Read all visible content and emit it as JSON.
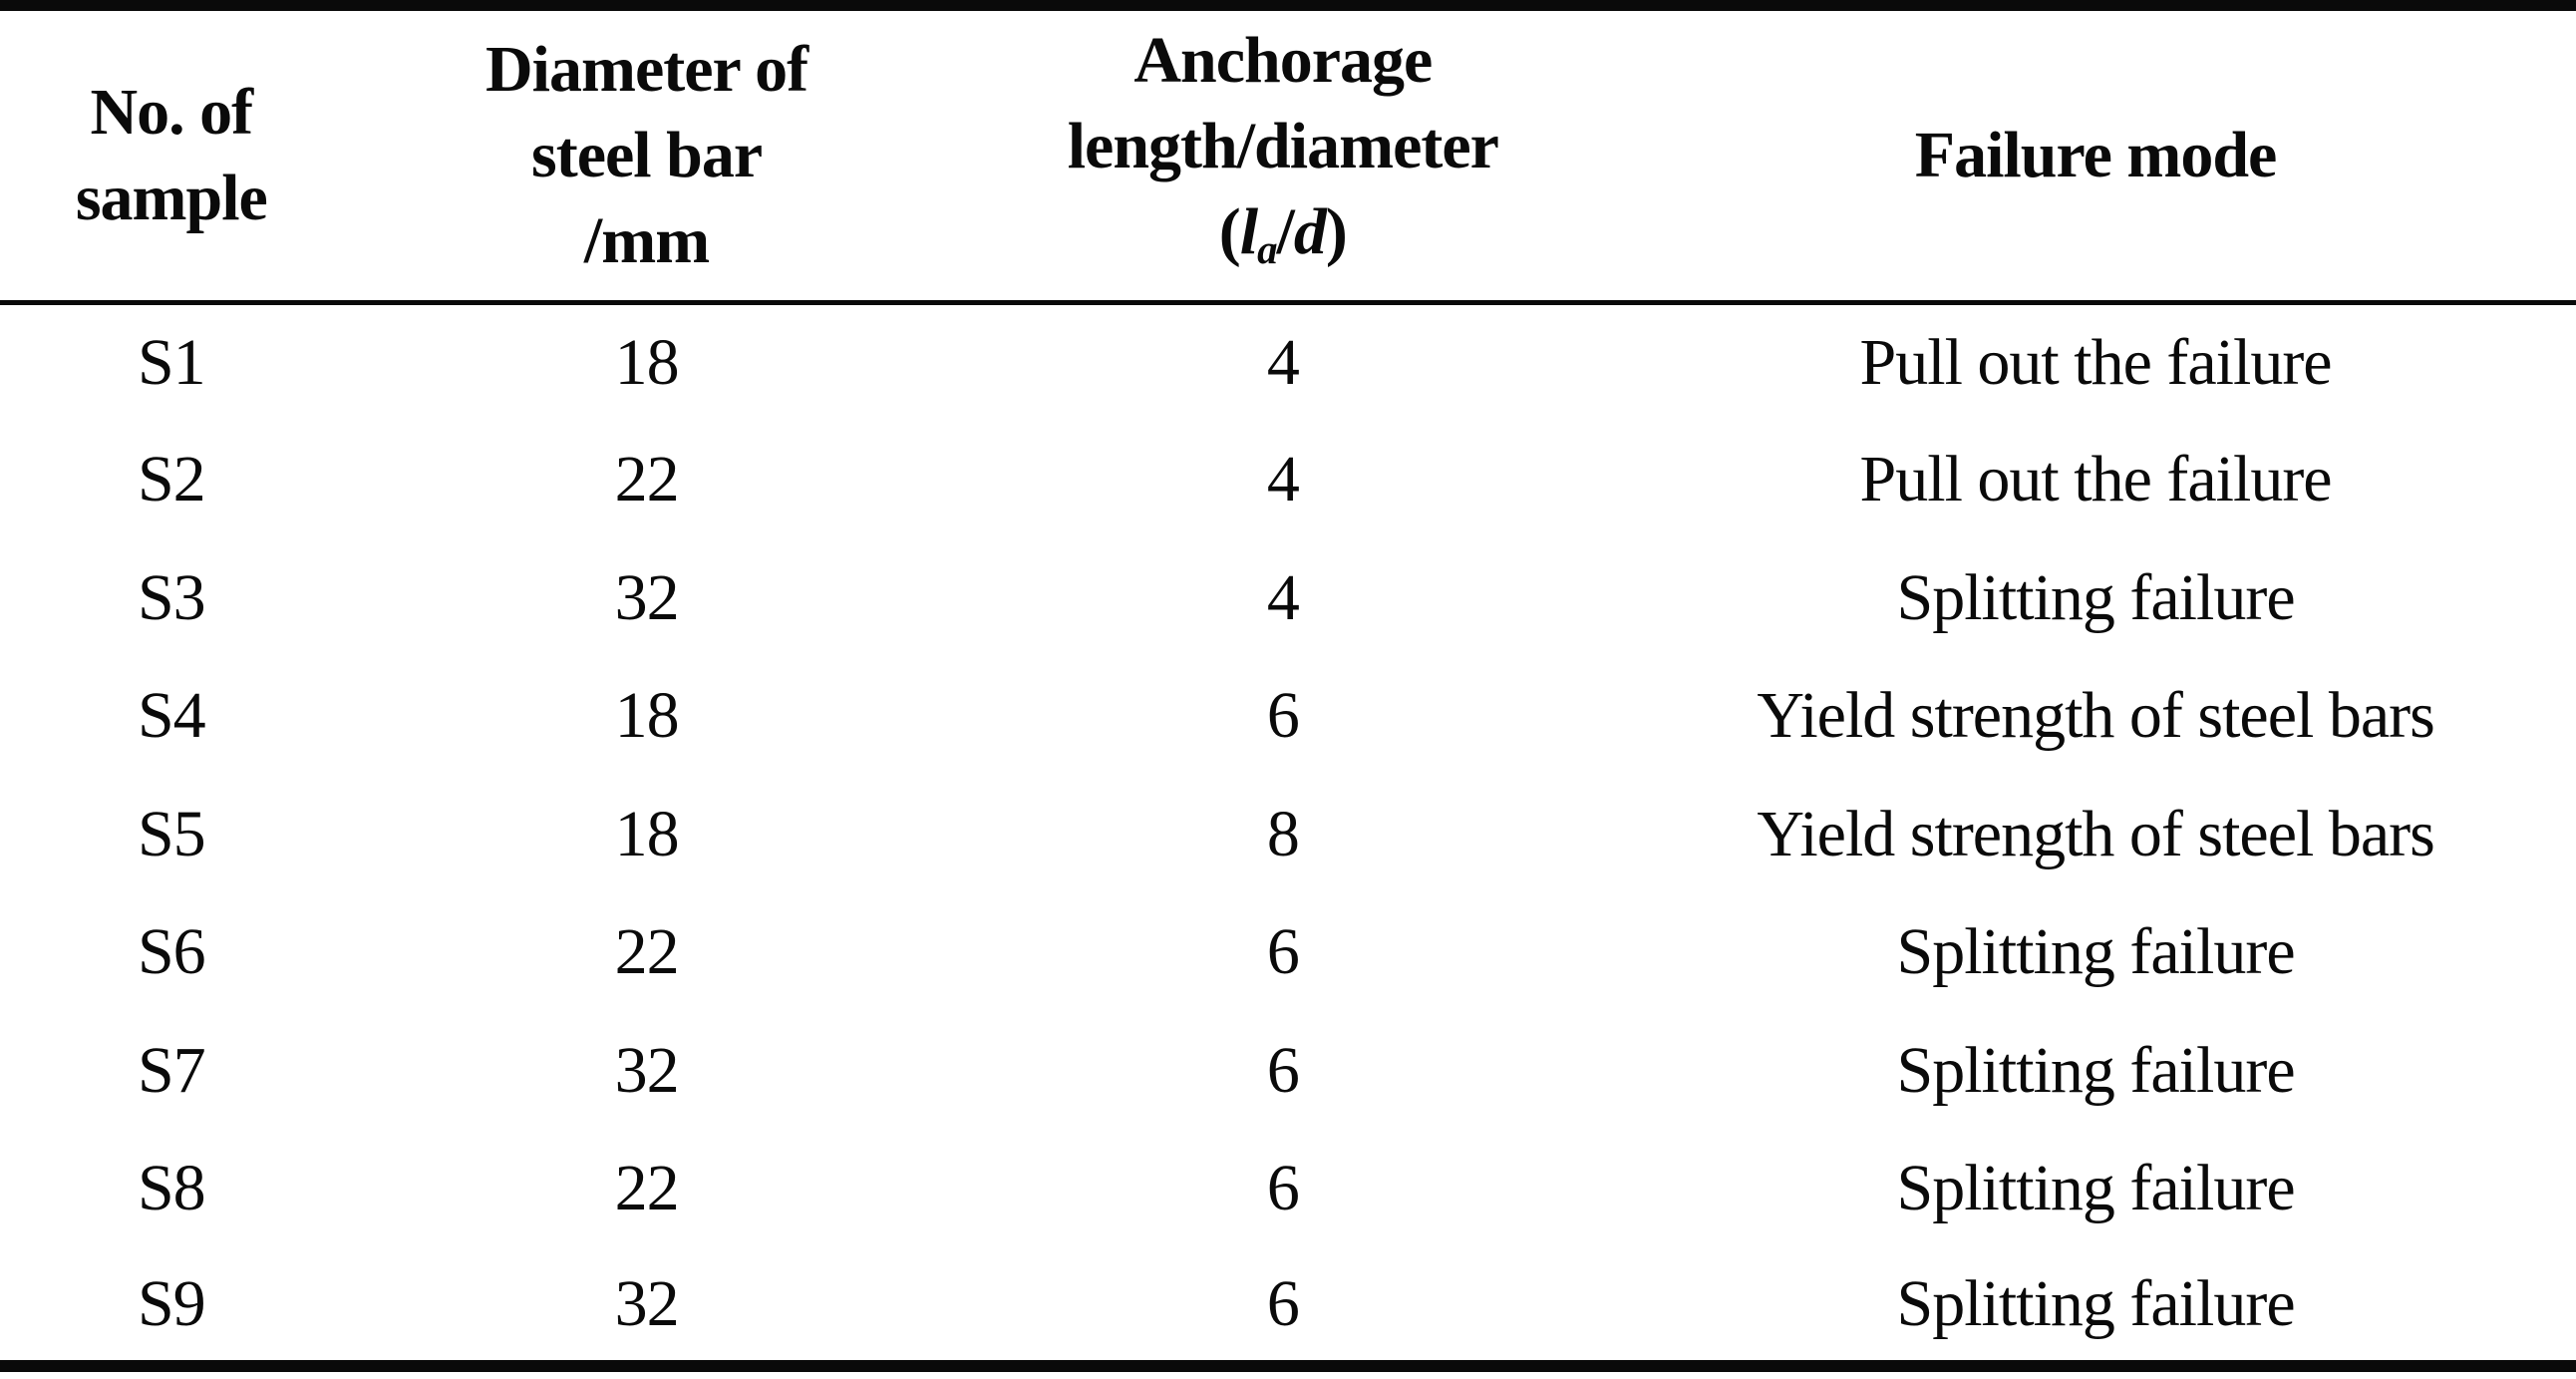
{
  "table": {
    "title_semantic": "Steel bar anchorage test samples and failure modes",
    "headers": [
      {
        "lines": [
          "No. of",
          "sample"
        ]
      },
      {
        "lines": [
          "Diameter of",
          "steel bar",
          "/mm"
        ]
      },
      {
        "lines": [
          "Anchorage",
          "length/diameter"
        ],
        "math": {
          "open": "(",
          "l": "l",
          "sub": "a",
          "slash": "/",
          "d": "d",
          "close": ")"
        }
      },
      {
        "lines": [
          "Failure mode"
        ]
      }
    ],
    "rows": [
      {
        "sample": "S1",
        "diameter": "18",
        "anchorage": "4",
        "failure": "Pull out the failure"
      },
      {
        "sample": "S2",
        "diameter": "22",
        "anchorage": "4",
        "failure": "Pull out the failure"
      },
      {
        "sample": "S3",
        "diameter": "32",
        "anchorage": "4",
        "failure": "Splitting failure"
      },
      {
        "sample": "S4",
        "diameter": "18",
        "anchorage": "6",
        "failure": "Yield strength of steel bars"
      },
      {
        "sample": "S5",
        "diameter": "18",
        "anchorage": "8",
        "failure": "Yield strength of steel bars"
      },
      {
        "sample": "S6",
        "diameter": "22",
        "anchorage": "6",
        "failure": "Splitting failure"
      },
      {
        "sample": "S7",
        "diameter": "32",
        "anchorage": "6",
        "failure": "Splitting failure"
      },
      {
        "sample": "S8",
        "diameter": "22",
        "anchorage": "6",
        "failure": "Splitting failure"
      },
      {
        "sample": "S9",
        "diameter": "32",
        "anchorage": "6",
        "failure": "Splitting failure"
      }
    ],
    "colors": {
      "text": "#0a0a0a",
      "rule": "#0a0a0a",
      "background": "#ffffff"
    }
  }
}
